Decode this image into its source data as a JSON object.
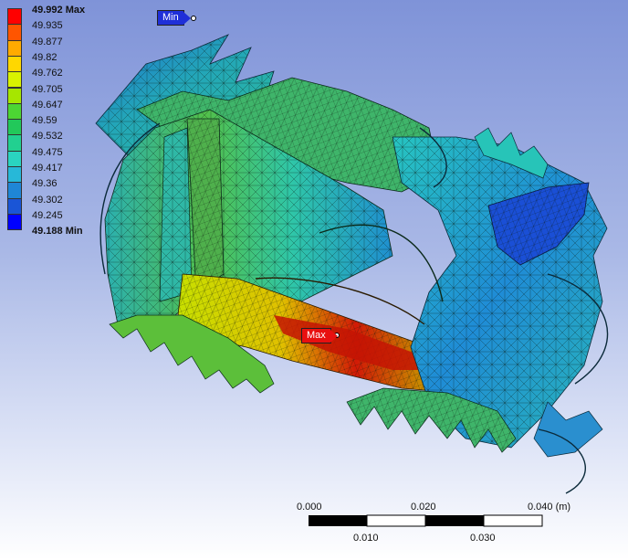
{
  "legend": {
    "max_label": "49.992 Max",
    "min_label": "49.188 Min",
    "levels": [
      "49.935",
      "49.877",
      "49.82",
      "49.762",
      "49.705",
      "49.647",
      "49.59",
      "49.532",
      "49.475",
      "49.417",
      "49.36",
      "49.302",
      "49.245"
    ],
    "colors": [
      "#ff0000",
      "#ff5500",
      "#ffaa00",
      "#ffd700",
      "#d9f200",
      "#a6e600",
      "#4cd633",
      "#22c85a",
      "#22d090",
      "#2ad4c0",
      "#27b8d8",
      "#1f86d6",
      "#1a55d6",
      "#0000ff"
    ]
  },
  "probes": {
    "min_text": "Min",
    "max_text": "Max"
  },
  "scale_bar": {
    "top_labels": [
      "0.000",
      "0.020",
      "0.040 (m)"
    ],
    "bottom_labels": [
      "0.010",
      "0.030"
    ]
  }
}
